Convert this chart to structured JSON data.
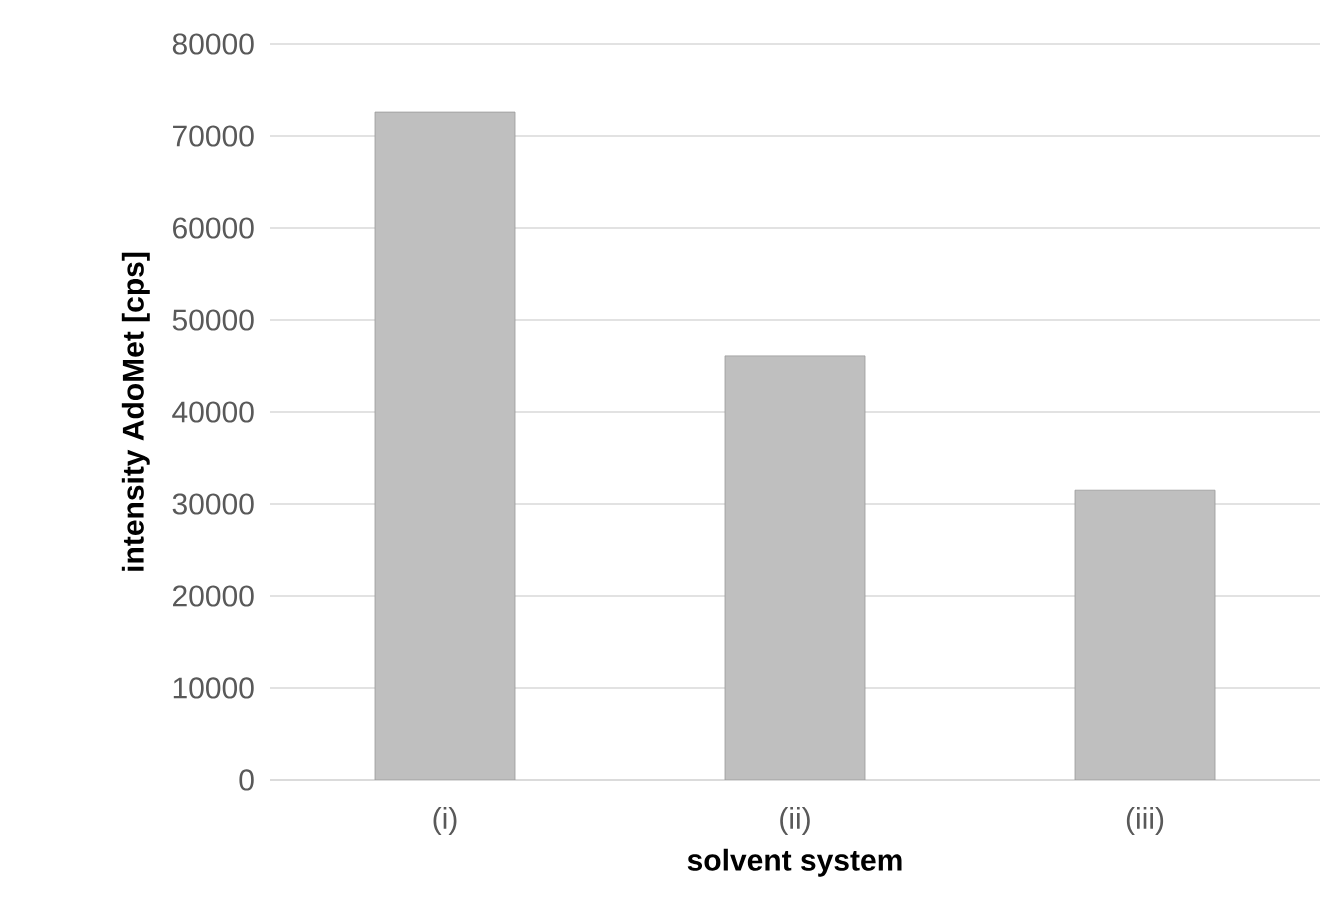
{
  "chart_data": {
    "type": "bar",
    "xlabel": "solvent system",
    "ylabel": "intensity AdoMet [cps]",
    "categories": [
      "(i)",
      "(ii)",
      "(iii)"
    ],
    "values": [
      72600,
      46100,
      31500
    ],
    "color": "#bfbfbf",
    "ylim": [
      0,
      80000
    ],
    "yticks": [
      0,
      10000,
      20000,
      30000,
      40000,
      50000,
      60000,
      70000,
      80000
    ],
    "grid": "y"
  }
}
